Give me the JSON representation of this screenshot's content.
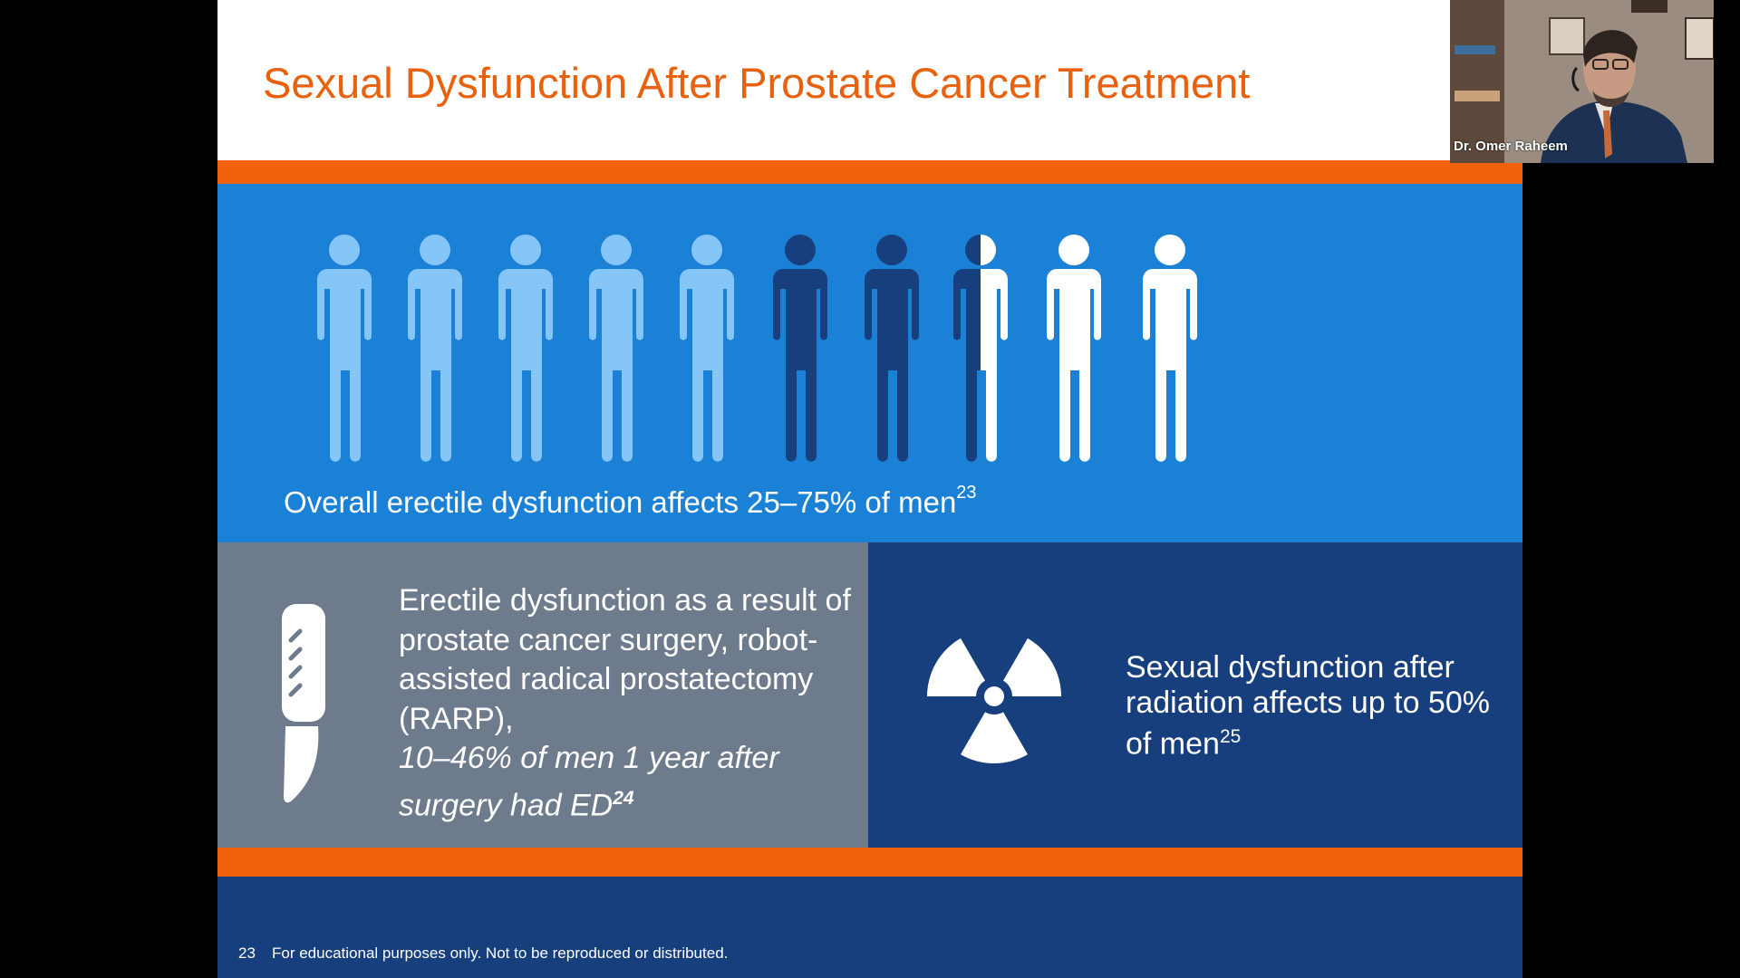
{
  "meeting": {
    "participant_name": "Dr. Omer Raheem"
  },
  "slide": {
    "title": "Sexual Dysfunction After Prostate Cancer Treatment",
    "people_caption": {
      "text": "Overall erectile dysfunction affects 25–75% of men",
      "ref": "23"
    },
    "people_figure": {
      "total": 10,
      "light_blue": 5,
      "dark_blue": 2.5,
      "white": 2.5
    },
    "surgery": {
      "line1": "Erectile dysfunction as a result of prostate cancer surgery, robot-assisted radical prostatectomy (RARP),",
      "line2_italic": "10–46% of men 1 year after surgery had ED",
      "ref": "24",
      "icon": "scalpel-icon"
    },
    "radiation": {
      "text": "Sexual dysfunction after radiation affects up to 50% of men",
      "ref": "25",
      "icon": "radiation-icon"
    },
    "footer": {
      "page_number": "23",
      "disclaimer": "For educational purposes only. Not to be reproduced or distributed."
    }
  },
  "colors": {
    "title_orange": "#e8610e",
    "bar_orange": "#f2620a",
    "panel_blue": "#1a81d6",
    "dark_navy": "#173f7d",
    "slate_gray": "#6d7b8c",
    "person_light": "#86c5f7",
    "person_dark": "#173f7d",
    "person_white": "#ffffff"
  }
}
